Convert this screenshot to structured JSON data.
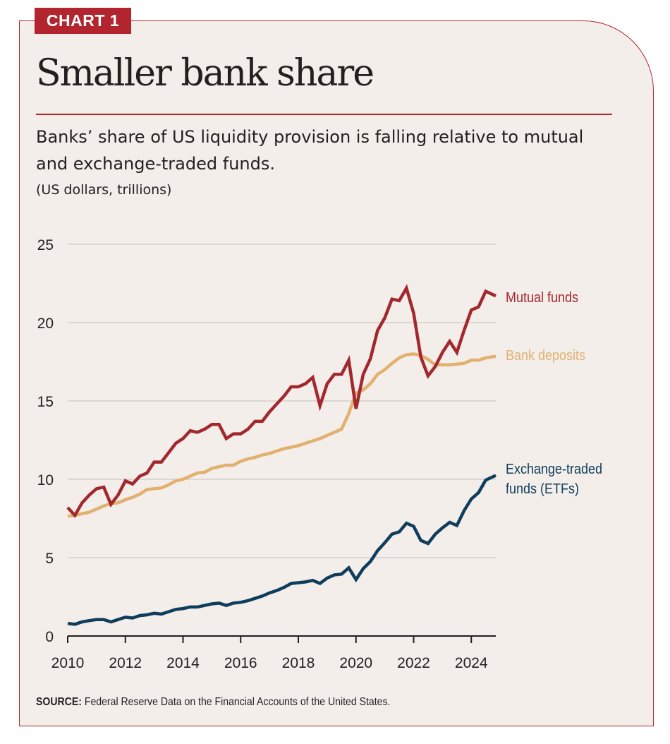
{
  "tag": "CHART 1",
  "title": "Smaller bank share",
  "subtitle": "Banks’ share of US liquidity provision is falling relative to mutual and exchange-traded funds.",
  "units": "(US dollars, trillions)",
  "source_label": "SOURCE:",
  "source_text": " Federal Reserve Data on the Financial Accounts of the United States.",
  "colors": {
    "accent": "#b3252e",
    "background": "#f3eeea",
    "mutual_funds": "#a3282d",
    "bank_deposits": "#e2b06f",
    "etfs": "#0f3d5c",
    "gridline": "#dcd7d4",
    "text": "#231f20"
  },
  "chart_data": {
    "type": "line",
    "title": "Smaller bank share",
    "xlabel": "",
    "ylabel": "US dollars, trillions",
    "xlim": [
      2010,
      2024.85
    ],
    "ylim": [
      0,
      25
    ],
    "grid": true,
    "legend": "right (inline labels at line ends)",
    "x_start": 2010,
    "x_step": 0.25,
    "x_ticks": [
      2010,
      2012,
      2014,
      2016,
      2018,
      2020,
      2022,
      2024
    ],
    "y_ticks": [
      0,
      5,
      10,
      15,
      20,
      25
    ],
    "series": [
      {
        "name": "Mutual funds",
        "color": "#a3282d",
        "label_lines": [
          "Mutual funds"
        ],
        "values": [
          8.2,
          7.7,
          8.5,
          9.0,
          9.4,
          9.5,
          8.4,
          9.0,
          9.9,
          9.7,
          10.2,
          10.4,
          11.1,
          11.1,
          11.7,
          12.3,
          12.6,
          13.1,
          13.0,
          13.2,
          13.5,
          13.5,
          12.6,
          12.9,
          12.9,
          13.2,
          13.7,
          13.7,
          14.3,
          14.8,
          15.3,
          15.9,
          15.9,
          16.1,
          16.5,
          14.7,
          16.1,
          16.7,
          16.7,
          17.6,
          14.5,
          16.7,
          17.7,
          19.5,
          20.3,
          21.5,
          21.4,
          22.2,
          20.6,
          17.8,
          16.6,
          17.2,
          18.1,
          18.8,
          18.1,
          19.5,
          20.8,
          21.0,
          22.0,
          21.7
        ]
      },
      {
        "name": "Bank deposits",
        "color": "#e2b06f",
        "label_lines": [
          "Bank deposits"
        ],
        "values": [
          7.65,
          7.7,
          7.8,
          7.9,
          8.1,
          8.3,
          8.45,
          8.5,
          8.7,
          8.85,
          9.05,
          9.35,
          9.4,
          9.45,
          9.65,
          9.9,
          10.0,
          10.2,
          10.4,
          10.45,
          10.7,
          10.8,
          10.9,
          10.9,
          11.15,
          11.3,
          11.4,
          11.55,
          11.65,
          11.8,
          11.95,
          12.05,
          12.15,
          12.3,
          12.45,
          12.6,
          12.8,
          13.0,
          13.2,
          14.2,
          15.5,
          15.7,
          16.1,
          16.7,
          17.0,
          17.4,
          17.75,
          17.95,
          18.0,
          17.9,
          17.65,
          17.3,
          17.3,
          17.3,
          17.35,
          17.4,
          17.6,
          17.6,
          17.75,
          17.85
        ]
      },
      {
        "name": "Exchange-traded funds (ETFs)",
        "color": "#0f3d5c",
        "label_lines": [
          "Exchange-traded",
          "funds (ETFs)"
        ],
        "values": [
          0.8,
          0.75,
          0.9,
          0.98,
          1.05,
          1.05,
          0.9,
          1.05,
          1.2,
          1.15,
          1.3,
          1.35,
          1.45,
          1.4,
          1.55,
          1.7,
          1.75,
          1.85,
          1.85,
          1.95,
          2.05,
          2.1,
          1.95,
          2.1,
          2.15,
          2.25,
          2.4,
          2.55,
          2.75,
          2.9,
          3.1,
          3.35,
          3.4,
          3.45,
          3.55,
          3.35,
          3.7,
          3.9,
          3.95,
          4.35,
          3.6,
          4.3,
          4.75,
          5.45,
          5.95,
          6.5,
          6.65,
          7.2,
          7.0,
          6.1,
          5.9,
          6.5,
          6.9,
          7.25,
          7.05,
          8.0,
          8.75,
          9.15,
          9.95,
          10.25
        ]
      }
    ]
  }
}
